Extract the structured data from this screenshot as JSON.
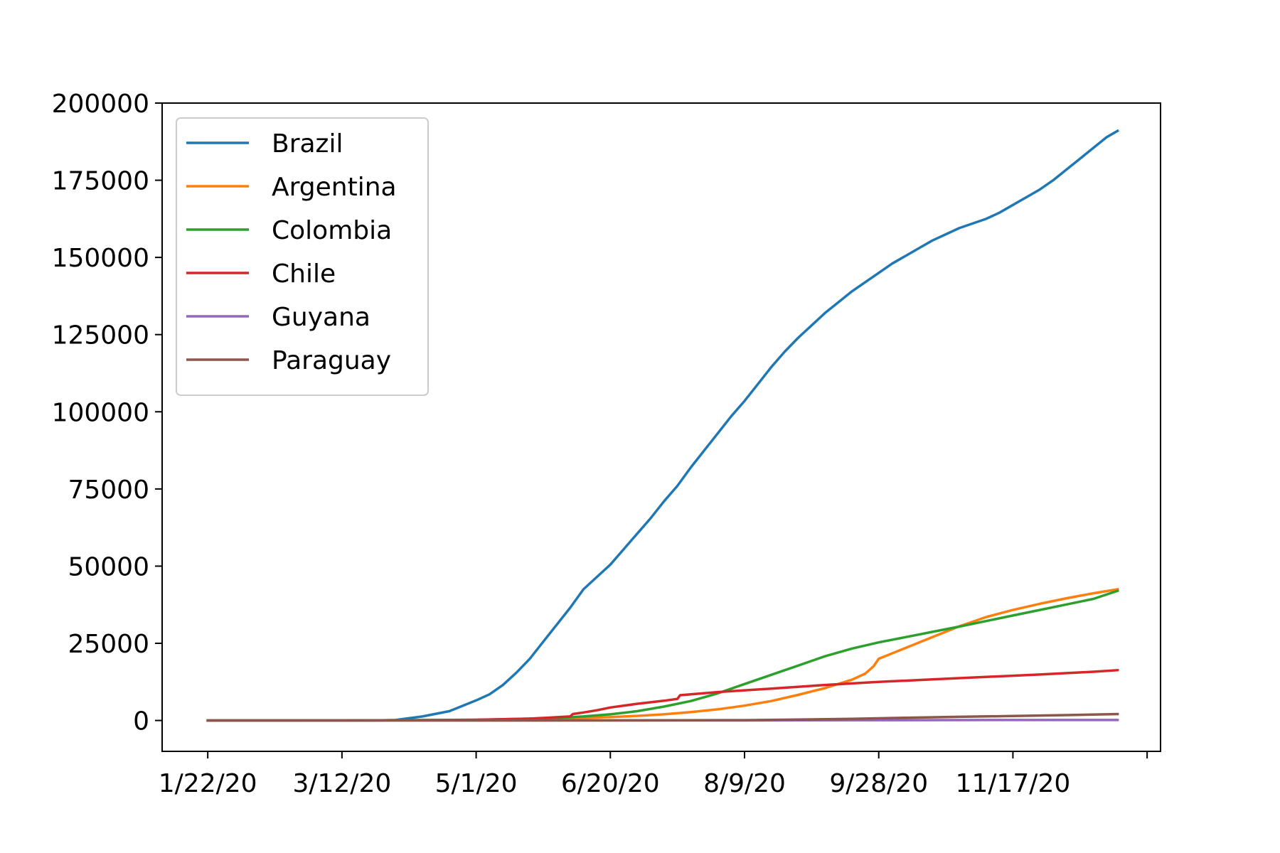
{
  "chart_data": {
    "type": "line",
    "title": "",
    "xlabel": "",
    "ylabel": "",
    "x_tick_labels": [
      "1/22/20",
      "3/12/20",
      "5/1/20",
      "6/20/20",
      "8/9/20",
      "9/28/20",
      "11/17/20",
      ""
    ],
    "x_tick_days": [
      0,
      50,
      100,
      150,
      200,
      250,
      300,
      350
    ],
    "xlim": [
      -17,
      355
    ],
    "ylim": [
      -10000,
      200000
    ],
    "y_ticks": [
      0,
      25000,
      50000,
      75000,
      100000,
      125000,
      150000,
      175000,
      200000
    ],
    "y_tick_labels": [
      "0",
      "25000",
      "50000",
      "75000",
      "100000",
      "125000",
      "150000",
      "175000",
      "200000"
    ],
    "legend_position": "upper left",
    "series": [
      {
        "name": "Brazil",
        "color": "#1f77b4",
        "x": [
          0,
          60,
          70,
          80,
          90,
          100,
          105,
          110,
          115,
          120,
          125,
          130,
          135,
          140,
          145,
          150,
          155,
          160,
          165,
          170,
          175,
          180,
          185,
          190,
          195,
          200,
          205,
          210,
          215,
          220,
          225,
          230,
          235,
          240,
          245,
          250,
          255,
          260,
          265,
          270,
          275,
          280,
          285,
          290,
          295,
          300,
          305,
          310,
          315,
          320,
          325,
          330,
          335,
          339
        ],
        "values": [
          0,
          0,
          150,
          1300,
          3000,
          6500,
          8500,
          11500,
          15500,
          20000,
          25500,
          31000,
          36500,
          42500,
          46500,
          50500,
          55500,
          60500,
          65500,
          71000,
          76000,
          82000,
          87500,
          93000,
          98500,
          103500,
          109000,
          114500,
          119500,
          124000,
          128000,
          132000,
          135500,
          139000,
          142000,
          145000,
          148000,
          150500,
          153000,
          155500,
          157500,
          159500,
          161000,
          162500,
          164500,
          167000,
          169500,
          172000,
          175000,
          178500,
          182000,
          185500,
          189000,
          191000
        ]
      },
      {
        "name": "Argentina",
        "color": "#ff7f0e",
        "x": [
          0,
          50,
          100,
          130,
          150,
          160,
          170,
          180,
          190,
          200,
          210,
          220,
          230,
          240,
          245,
          248,
          250,
          260,
          270,
          280,
          290,
          300,
          310,
          320,
          330,
          339
        ],
        "values": [
          0,
          0,
          200,
          600,
          1100,
          1500,
          2000,
          2700,
          3600,
          4800,
          6300,
          8300,
          10500,
          13200,
          15200,
          17500,
          20000,
          23500,
          27000,
          30500,
          33500,
          35800,
          37800,
          39600,
          41200,
          42500
        ]
      },
      {
        "name": "Colombia",
        "color": "#2ca02c",
        "x": [
          0,
          50,
          100,
          130,
          140,
          150,
          160,
          170,
          180,
          190,
          200,
          210,
          220,
          230,
          240,
          250,
          260,
          270,
          280,
          290,
          300,
          310,
          320,
          330,
          339
        ],
        "values": [
          0,
          0,
          200,
          800,
          1300,
          2000,
          3000,
          4500,
          6300,
          8800,
          11800,
          14800,
          17800,
          20800,
          23300,
          25300,
          27000,
          28700,
          30400,
          32200,
          34000,
          35800,
          37600,
          39400,
          42000
        ]
      },
      {
        "name": "Chile",
        "color": "#d62728",
        "x": [
          0,
          50,
          100,
          120,
          135,
          136,
          140,
          145,
          150,
          160,
          170,
          175,
          176,
          190,
          210,
          230,
          250,
          270,
          290,
          310,
          330,
          339
        ],
        "values": [
          0,
          0,
          250,
          600,
          1300,
          2100,
          2600,
          3300,
          4200,
          5400,
          6400,
          7000,
          8200,
          9200,
          10300,
          11500,
          12500,
          13300,
          14100,
          14900,
          15800,
          16300
        ]
      },
      {
        "name": "Guyana",
        "color": "#9467bd",
        "x": [
          0,
          100,
          200,
          250,
          300,
          339
        ],
        "values": [
          0,
          10,
          20,
          100,
          150,
          165
        ]
      },
      {
        "name": "Paraguay",
        "color": "#8c564b",
        "x": [
          0,
          100,
          150,
          200,
          220,
          240,
          260,
          280,
          300,
          320,
          339
        ],
        "values": [
          0,
          10,
          30,
          100,
          300,
          550,
          900,
          1200,
          1450,
          1750,
          2100
        ]
      }
    ]
  }
}
